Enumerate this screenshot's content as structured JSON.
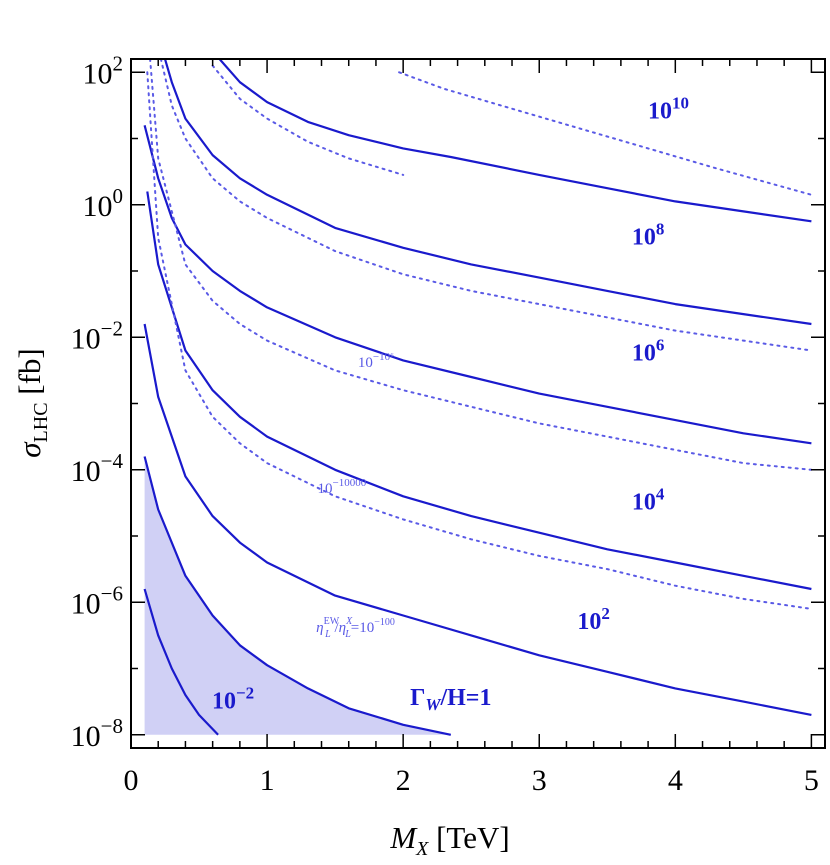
{
  "chart_data": {
    "type": "line",
    "xlabel": "M_X [TeV]",
    "ylabel": "σ_LHC [fb]",
    "x_range": [
      0,
      5.1
    ],
    "y_log_range": [
      -8.2,
      2.2
    ],
    "y_scale": "log",
    "x_ticks": [
      "0",
      "1",
      "2",
      "3",
      "4",
      "5"
    ],
    "y_ticks": [
      {
        "base": "10",
        "exp": "2",
        "value": 2
      },
      {
        "base": "10",
        "exp": "0",
        "value": 0
      },
      {
        "base": "10",
        "exp": "−2",
        "value": -2
      },
      {
        "base": "10",
        "exp": "−4",
        "value": -4
      },
      {
        "base": "10",
        "exp": "−6",
        "value": -6
      },
      {
        "base": "10",
        "exp": "−8",
        "value": -8
      }
    ],
    "colors": {
      "solid": "#1a1acc",
      "dotted": "#5a5ae6",
      "fill": "#d0d0f5"
    },
    "series": [
      {
        "name": "10^-2",
        "style": "solid",
        "x": [
          0.1,
          0.2,
          0.3,
          0.4,
          0.5,
          0.64
        ],
        "log10_y": [
          -5.8,
          -6.5,
          -7.0,
          -7.4,
          -7.7,
          -8.0
        ]
      },
      {
        "name": "Γ_W/H=1",
        "style": "solid",
        "x": [
          0.1,
          0.2,
          0.4,
          0.6,
          0.8,
          1.0,
          1.3,
          1.6,
          2.0,
          2.35
        ],
        "log10_y": [
          -3.8,
          -4.6,
          -5.6,
          -6.2,
          -6.65,
          -6.95,
          -7.3,
          -7.6,
          -7.85,
          -8.0
        ]
      },
      {
        "name": "10^2",
        "style": "solid",
        "x": [
          0.1,
          0.2,
          0.4,
          0.6,
          0.8,
          1.0,
          1.5,
          2.0,
          2.5,
          3.0,
          3.5,
          4.0,
          4.5,
          5.0
        ],
        "log10_y": [
          -1.8,
          -2.9,
          -4.1,
          -4.7,
          -5.1,
          -5.4,
          -5.9,
          -6.2,
          -6.5,
          -6.8,
          -7.05,
          -7.3,
          -7.5,
          -7.7
        ]
      },
      {
        "name": "10^4",
        "style": "solid",
        "x": [
          0.12,
          0.2,
          0.4,
          0.6,
          0.8,
          1.0,
          1.5,
          2.0,
          2.5,
          3.0,
          3.5,
          4.0,
          4.5,
          5.0
        ],
        "log10_y": [
          0.2,
          -0.9,
          -2.2,
          -2.8,
          -3.2,
          -3.5,
          -4.0,
          -4.4,
          -4.7,
          -4.95,
          -5.2,
          -5.4,
          -5.6,
          -5.8
        ]
      },
      {
        "name": "10^6",
        "style": "solid",
        "x": [
          0.1,
          0.2,
          0.3,
          0.4,
          0.6,
          0.8,
          1.0,
          1.5,
          2.0,
          2.5,
          3.0,
          3.5,
          4.0,
          4.5,
          5.0
        ],
        "log10_y": [
          1.2,
          0.4,
          -0.2,
          -0.6,
          -1.0,
          -1.3,
          -1.55,
          -2.0,
          -2.35,
          -2.6,
          -2.85,
          -3.05,
          -3.25,
          -3.45,
          -3.6
        ]
      },
      {
        "name": "10^8",
        "style": "solid",
        "x": [
          0.25,
          0.3,
          0.4,
          0.6,
          0.8,
          1.0,
          1.5,
          2.0,
          2.5,
          3.0,
          3.5,
          4.0,
          4.5,
          5.0
        ],
        "log10_y": [
          2.2,
          1.85,
          1.3,
          0.75,
          0.4,
          0.15,
          -0.35,
          -0.65,
          -0.9,
          -1.1,
          -1.3,
          -1.5,
          -1.65,
          -1.8
        ]
      },
      {
        "name": "10^10",
        "style": "solid",
        "x": [
          0.65,
          0.8,
          1.0,
          1.3,
          1.6,
          2.0,
          2.35,
          3.0,
          3.5,
          4.0,
          4.5,
          5.0
        ],
        "log10_y": [
          2.2,
          1.85,
          1.55,
          1.25,
          1.05,
          0.85,
          0.72,
          0.45,
          0.25,
          0.05,
          -0.1,
          -0.25
        ]
      },
      {
        "name": "η_L^EW/η_L^X=10^-100",
        "style": "dotted",
        "x": [
          0.12,
          0.2,
          0.4,
          0.6,
          0.8,
          1.0,
          1.5,
          2.0,
          2.5,
          3.0,
          3.5,
          4.0,
          4.5,
          5.0
        ],
        "log10_y": [
          2.0,
          -0.5,
          -2.5,
          -3.2,
          -3.6,
          -3.9,
          -4.4,
          -4.75,
          -5.05,
          -5.3,
          -5.5,
          -5.75,
          -5.95,
          -6.1
        ]
      },
      {
        "name": "10^-10000",
        "style": "dotted",
        "x": [
          0.14,
          0.2,
          0.4,
          0.6,
          0.8,
          1.0,
          1.5,
          2.0,
          2.5,
          3.0,
          3.5,
          4.0,
          4.5,
          5.0
        ],
        "log10_y": [
          2.2,
          0.7,
          -0.9,
          -1.45,
          -1.8,
          -2.05,
          -2.5,
          -2.8,
          -3.05,
          -3.3,
          -3.5,
          -3.7,
          -3.9,
          -4.0
        ]
      },
      {
        "name": "10^-10^6",
        "style": "dotted",
        "x": [
          0.22,
          0.3,
          0.4,
          0.6,
          0.8,
          1.0,
          1.5,
          2.0,
          2.5,
          3.0,
          3.5,
          4.0,
          4.5,
          5.0
        ],
        "log10_y": [
          2.2,
          1.5,
          1.0,
          0.4,
          0.05,
          -0.2,
          -0.7,
          -1.05,
          -1.3,
          -1.5,
          -1.7,
          -1.9,
          -2.05,
          -2.2
        ]
      },
      {
        "name": "",
        "style": "dotted",
        "x": [
          0.6,
          0.8,
          1.0,
          1.3,
          1.6,
          2.0
        ],
        "log10_y": [
          2.1,
          1.6,
          1.3,
          0.95,
          0.7,
          0.45
        ]
      },
      {
        "name": "",
        "style": "dotted",
        "x": [
          1.97,
          2.3,
          2.8,
          3.3,
          3.8,
          4.3,
          5.0
        ],
        "log10_y": [
          2.0,
          1.75,
          1.45,
          1.15,
          0.85,
          0.55,
          0.15
        ]
      }
    ],
    "shaded_region": {
      "x": [
        0.1,
        0.2,
        0.4,
        0.6,
        0.8,
        1.0,
        1.3,
        1.6,
        2.0,
        2.35,
        0.1
      ],
      "log10_y": [
        -3.8,
        -4.6,
        -5.6,
        -6.2,
        -6.65,
        -6.95,
        -7.3,
        -7.6,
        -7.85,
        -8.0,
        -8.0
      ]
    },
    "curve_labels": [
      {
        "base": "10",
        "exp": "10",
        "style": "solid",
        "x": 3.95,
        "log10_y": 1.3
      },
      {
        "base": "10",
        "exp": "8",
        "style": "solid",
        "x": 3.8,
        "log10_y": -0.6
      },
      {
        "base": "10",
        "exp": "6",
        "style": "solid",
        "x": 3.8,
        "log10_y": -2.35
      },
      {
        "base": "10",
        "exp": "4",
        "style": "solid",
        "x": 3.8,
        "log10_y": -4.6
      },
      {
        "base": "10",
        "exp": "2",
        "style": "solid",
        "x": 3.4,
        "log10_y": -6.4
      },
      {
        "base": "10",
        "exp": "−2",
        "style": "solid",
        "x": 0.75,
        "log10_y": -7.6
      },
      {
        "text": "Γ_W/H=1",
        "style": "solid",
        "x": 2.35,
        "log10_y": -7.55
      },
      {
        "text": "η_L^EW/η_L^X=10^−100",
        "style": "dotted",
        "x": 1.65,
        "log10_y": -6.45
      },
      {
        "base": "10",
        "exp": "−10000",
        "style": "dotted",
        "x": 1.55,
        "log10_y": -4.35
      },
      {
        "base": "10",
        "exp": "−10⁶",
        "style": "dotted",
        "x": 1.8,
        "log10_y": -2.45
      }
    ]
  }
}
